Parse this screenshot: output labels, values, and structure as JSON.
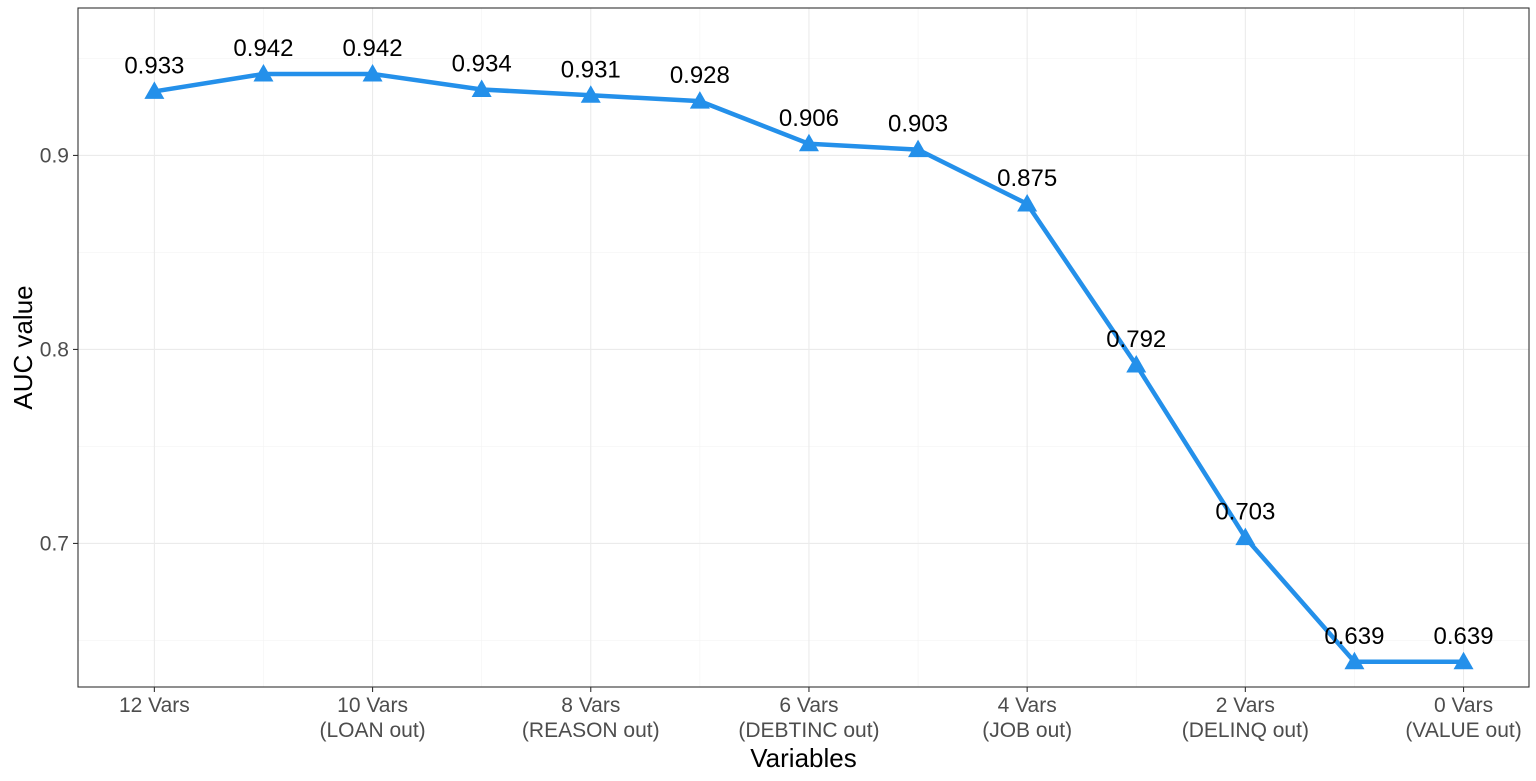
{
  "chart_data": {
    "type": "line",
    "title": "",
    "xlabel": "Variables",
    "ylabel": "AUC value",
    "x_tick_labels": [
      [
        "12 Vars"
      ],
      [
        "10 Vars",
        "(LOAN out)"
      ],
      [
        "8 Vars",
        "(REASON out)"
      ],
      [
        "6 Vars",
        "(DEBTINC out)"
      ],
      [
        "4 Vars",
        "(JOB out)"
      ],
      [
        "2 Vars",
        "(DELINQ out)"
      ],
      [
        "0 Vars",
        "(VALUE out)"
      ]
    ],
    "x_tick_positions": [
      1,
      3,
      5,
      7,
      9,
      11,
      13
    ],
    "x": [
      1,
      2,
      3,
      4,
      5,
      6,
      7,
      8,
      9,
      10,
      11,
      12,
      13
    ],
    "xlim": [
      0.3,
      13.6
    ],
    "ylim": [
      0.626,
      0.976
    ],
    "y_ticks": [
      0.7,
      0.8,
      0.9
    ],
    "y_tick_labels": [
      "0.7",
      "0.8",
      "0.9"
    ],
    "series": [
      {
        "values": [
          0.933,
          0.942,
          0.942,
          0.934,
          0.931,
          0.928,
          0.906,
          0.903,
          0.875,
          0.792,
          0.703,
          0.639,
          0.639
        ],
        "labels": [
          "0.933",
          "0.942",
          "0.942",
          "0.934",
          "0.931",
          "0.928",
          "0.906",
          "0.903",
          "0.875",
          "0.792",
          "0.703",
          "0.639",
          "0.639"
        ],
        "color": "#2490ea",
        "marker": "triangle"
      }
    ],
    "grid": true,
    "legend": "none"
  }
}
